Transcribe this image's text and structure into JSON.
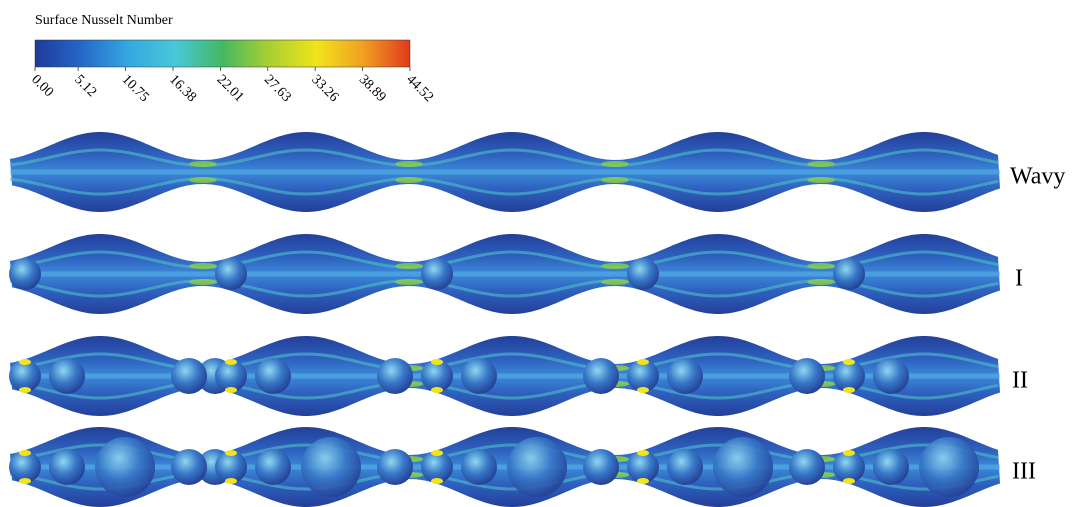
{
  "colorbar": {
    "title": "Surface Nusselt Number",
    "lim": [
      0,
      44.52
    ],
    "ticks": [
      {
        "value": 0,
        "label": "0.00"
      },
      5.12,
      10.75,
      16.38,
      22.01,
      27.63,
      33.26,
      38.89,
      44.52
    ],
    "colors": [
      "#1f3a9c",
      "#2668c8",
      "#35a8e0",
      "#48c8d8",
      "#44b860",
      "#a8d030",
      "#f0e41c",
      "#f0a020",
      "#e03a1c"
    ]
  },
  "rows": [
    {
      "label": "Wavy"
    },
    {
      "label": "I"
    },
    {
      "label": "II"
    },
    {
      "label": "III"
    }
  ]
}
